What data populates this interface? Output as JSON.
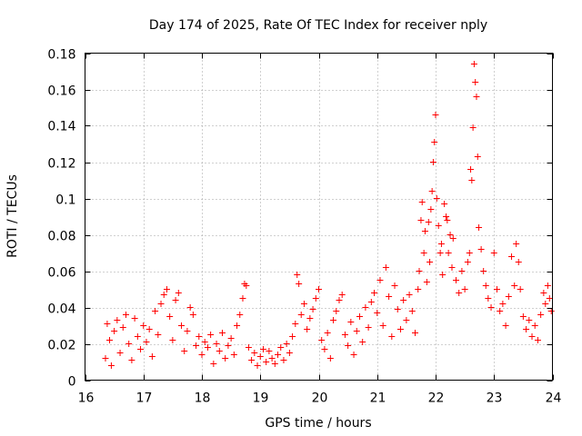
{
  "chart_data": {
    "type": "scatter",
    "title": "Day 174 of 2025, Rate Of TEC Index for receiver nply",
    "xlabel": "GPS time / hours",
    "ylabel": "ROTI / TECUs",
    "xlim": [
      16,
      24
    ],
    "ylim": [
      0,
      0.18
    ],
    "xticks": [
      16,
      17,
      18,
      19,
      20,
      21,
      22,
      23,
      24
    ],
    "xtick_labels": [
      "16",
      "17",
      "18",
      "19",
      "20",
      "21",
      "22",
      "23",
      "24"
    ],
    "yticks": [
      0,
      0.02,
      0.04,
      0.06,
      0.08,
      0.1,
      0.12,
      0.14,
      0.16,
      0.18
    ],
    "ytick_labels": [
      "0",
      "0.02",
      "0.04",
      "0.06",
      "0.08",
      "0.1",
      "0.12",
      "0.14",
      "0.16",
      "0.18"
    ],
    "grid": true,
    "marker": "plus",
    "series": [
      {
        "name": "ROTI",
        "color": "#ff0000",
        "points": [
          [
            16.35,
            0.012
          ],
          [
            16.38,
            0.031
          ],
          [
            16.42,
            0.022
          ],
          [
            16.45,
            0.008
          ],
          [
            16.5,
            0.027
          ],
          [
            16.55,
            0.033
          ],
          [
            16.6,
            0.015
          ],
          [
            16.65,
            0.029
          ],
          [
            16.7,
            0.036
          ],
          [
            16.75,
            0.02
          ],
          [
            16.8,
            0.011
          ],
          [
            16.85,
            0.034
          ],
          [
            16.9,
            0.024
          ],
          [
            16.95,
            0.017
          ],
          [
            17.0,
            0.03
          ],
          [
            17.05,
            0.021
          ],
          [
            17.1,
            0.028
          ],
          [
            17.15,
            0.013
          ],
          [
            17.2,
            0.038
          ],
          [
            17.25,
            0.025
          ],
          [
            17.3,
            0.042
          ],
          [
            17.35,
            0.047
          ],
          [
            17.4,
            0.05
          ],
          [
            17.45,
            0.035
          ],
          [
            17.5,
            0.022
          ],
          [
            17.55,
            0.044
          ],
          [
            17.6,
            0.048
          ],
          [
            17.65,
            0.03
          ],
          [
            17.7,
            0.016
          ],
          [
            17.75,
            0.027
          ],
          [
            17.8,
            0.04
          ],
          [
            17.85,
            0.036
          ],
          [
            17.9,
            0.019
          ],
          [
            17.95,
            0.024
          ],
          [
            18.0,
            0.014
          ],
          [
            18.05,
            0.021
          ],
          [
            18.1,
            0.018
          ],
          [
            18.15,
            0.025
          ],
          [
            18.2,
            0.009
          ],
          [
            18.25,
            0.02
          ],
          [
            18.3,
            0.016
          ],
          [
            18.35,
            0.026
          ],
          [
            18.4,
            0.012
          ],
          [
            18.45,
            0.019
          ],
          [
            18.5,
            0.023
          ],
          [
            18.55,
            0.014
          ],
          [
            18.6,
            0.03
          ],
          [
            18.65,
            0.036
          ],
          [
            18.7,
            0.045
          ],
          [
            18.73,
            0.053
          ],
          [
            18.76,
            0.052
          ],
          [
            18.8,
            0.018
          ],
          [
            18.85,
            0.011
          ],
          [
            18.9,
            0.015
          ],
          [
            18.95,
            0.008
          ],
          [
            19.0,
            0.013
          ],
          [
            19.05,
            0.017
          ],
          [
            19.1,
            0.01
          ],
          [
            19.15,
            0.016
          ],
          [
            19.2,
            0.012
          ],
          [
            19.25,
            0.009
          ],
          [
            19.3,
            0.014
          ],
          [
            19.35,
            0.018
          ],
          [
            19.4,
            0.011
          ],
          [
            19.45,
            0.02
          ],
          [
            19.5,
            0.015
          ],
          [
            19.55,
            0.024
          ],
          [
            19.6,
            0.031
          ],
          [
            19.63,
            0.058
          ],
          [
            19.66,
            0.053
          ],
          [
            19.7,
            0.036
          ],
          [
            19.75,
            0.042
          ],
          [
            19.8,
            0.028
          ],
          [
            19.85,
            0.034
          ],
          [
            19.9,
            0.039
          ],
          [
            19.95,
            0.045
          ],
          [
            20.0,
            0.05
          ],
          [
            20.05,
            0.022
          ],
          [
            20.1,
            0.017
          ],
          [
            20.15,
            0.026
          ],
          [
            20.2,
            0.012
          ],
          [
            20.25,
            0.033
          ],
          [
            20.3,
            0.038
          ],
          [
            20.35,
            0.044
          ],
          [
            20.4,
            0.047
          ],
          [
            20.45,
            0.025
          ],
          [
            20.5,
            0.019
          ],
          [
            20.55,
            0.032
          ],
          [
            20.6,
            0.014
          ],
          [
            20.65,
            0.027
          ],
          [
            20.7,
            0.035
          ],
          [
            20.75,
            0.021
          ],
          [
            20.8,
            0.04
          ],
          [
            20.85,
            0.029
          ],
          [
            20.9,
            0.043
          ],
          [
            20.95,
            0.048
          ],
          [
            21.0,
            0.037
          ],
          [
            21.05,
            0.055
          ],
          [
            21.1,
            0.03
          ],
          [
            21.15,
            0.062
          ],
          [
            21.2,
            0.046
          ],
          [
            21.25,
            0.024
          ],
          [
            21.3,
            0.052
          ],
          [
            21.35,
            0.039
          ],
          [
            21.4,
            0.028
          ],
          [
            21.45,
            0.044
          ],
          [
            21.5,
            0.033
          ],
          [
            21.55,
            0.047
          ],
          [
            21.6,
            0.038
          ],
          [
            21.65,
            0.026
          ],
          [
            21.7,
            0.05
          ],
          [
            21.72,
            0.06
          ],
          [
            21.75,
            0.088
          ],
          [
            21.77,
            0.098
          ],
          [
            21.8,
            0.07
          ],
          [
            21.82,
            0.082
          ],
          [
            21.85,
            0.054
          ],
          [
            21.88,
            0.087
          ],
          [
            21.9,
            0.065
          ],
          [
            21.92,
            0.094
          ],
          [
            21.94,
            0.104
          ],
          [
            21.96,
            0.12
          ],
          [
            21.98,
            0.131
          ],
          [
            22.0,
            0.146
          ],
          [
            22.02,
            0.1
          ],
          [
            22.05,
            0.085
          ],
          [
            22.08,
            0.07
          ],
          [
            22.1,
            0.075
          ],
          [
            22.12,
            0.058
          ],
          [
            22.15,
            0.097
          ],
          [
            22.18,
            0.09
          ],
          [
            22.2,
            0.088
          ],
          [
            22.22,
            0.07
          ],
          [
            22.25,
            0.08
          ],
          [
            22.28,
            0.062
          ],
          [
            22.3,
            0.078
          ],
          [
            22.35,
            0.055
          ],
          [
            22.4,
            0.048
          ],
          [
            22.45,
            0.06
          ],
          [
            22.5,
            0.05
          ],
          [
            22.55,
            0.065
          ],
          [
            22.58,
            0.07
          ],
          [
            22.6,
            0.116
          ],
          [
            22.62,
            0.11
          ],
          [
            22.64,
            0.139
          ],
          [
            22.66,
            0.174
          ],
          [
            22.68,
            0.164
          ],
          [
            22.7,
            0.156
          ],
          [
            22.72,
            0.123
          ],
          [
            22.74,
            0.084
          ],
          [
            22.78,
            0.072
          ],
          [
            22.82,
            0.06
          ],
          [
            22.86,
            0.052
          ],
          [
            22.9,
            0.045
          ],
          [
            22.95,
            0.04
          ],
          [
            23.0,
            0.07
          ],
          [
            23.05,
            0.05
          ],
          [
            23.1,
            0.038
          ],
          [
            23.15,
            0.042
          ],
          [
            23.2,
            0.03
          ],
          [
            23.25,
            0.046
          ],
          [
            23.3,
            0.068
          ],
          [
            23.35,
            0.052
          ],
          [
            23.38,
            0.075
          ],
          [
            23.42,
            0.065
          ],
          [
            23.45,
            0.05
          ],
          [
            23.5,
            0.035
          ],
          [
            23.55,
            0.028
          ],
          [
            23.6,
            0.033
          ],
          [
            23.65,
            0.024
          ],
          [
            23.7,
            0.03
          ],
          [
            23.75,
            0.022
          ],
          [
            23.8,
            0.036
          ],
          [
            23.85,
            0.048
          ],
          [
            23.88,
            0.042
          ],
          [
            23.92,
            0.052
          ],
          [
            23.95,
            0.045
          ],
          [
            23.98,
            0.038
          ]
        ]
      }
    ]
  }
}
